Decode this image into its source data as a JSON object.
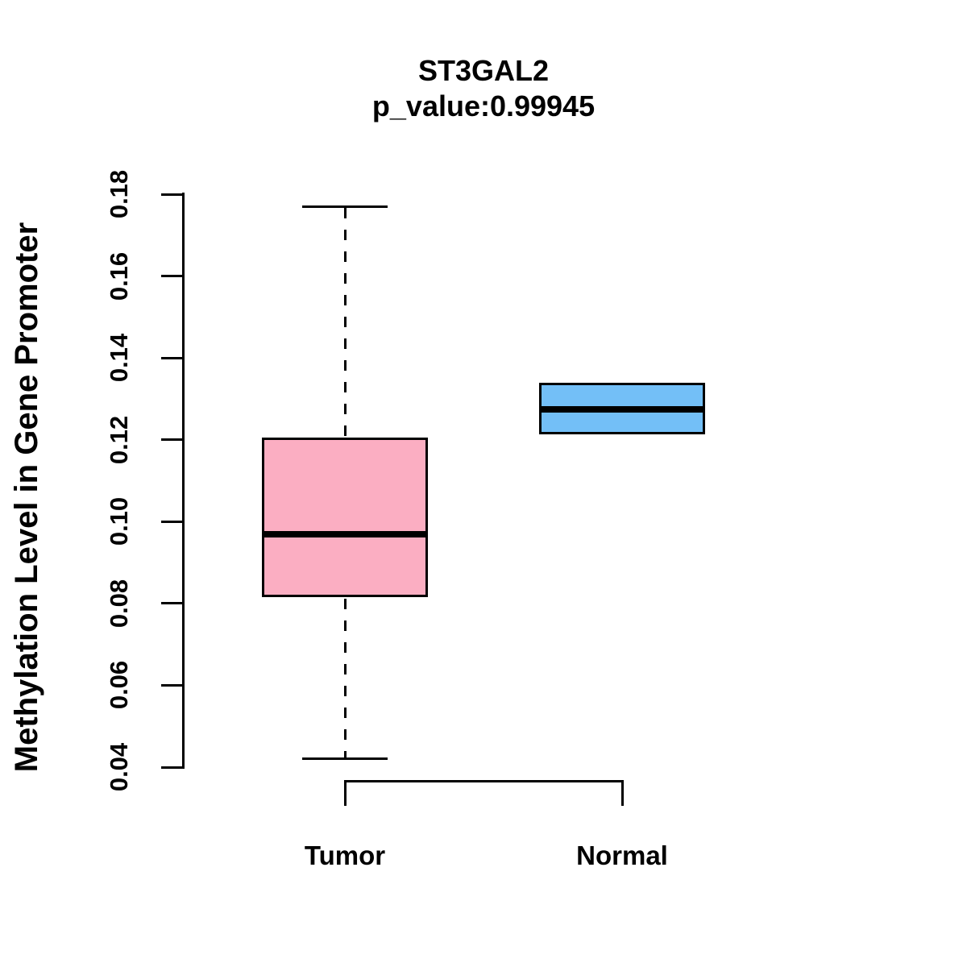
{
  "figure": {
    "background": "#ffffff",
    "line_color": "#000000"
  },
  "chart_data": {
    "type": "boxplot",
    "title": "ST3GAL2",
    "subtitle": "p_value:0.99945",
    "ylabel": "Methylation Level in Gene Promoter",
    "xlabel": "",
    "ylim": [
      0.04,
      0.18
    ],
    "yticks": [
      "0.04",
      "0.06",
      "0.08",
      "0.10",
      "0.12",
      "0.14",
      "0.16",
      "0.18"
    ],
    "grid": "off",
    "legend": "none",
    "groups": [
      {
        "label": "Tumor",
        "fill_color": "#FBAEC2",
        "border_color": "#000000",
        "whisker_low": 0.042,
        "q1": 0.0815,
        "median": 0.097,
        "q3": 0.1205,
        "whisker_high": 0.177
      },
      {
        "label": "Normal",
        "fill_color": "#73BFF7",
        "border_color": "#000000",
        "whisker_low": 0.1213,
        "q1": 0.1213,
        "median": 0.1274,
        "q3": 0.134,
        "whisker_high": 0.134
      }
    ]
  }
}
